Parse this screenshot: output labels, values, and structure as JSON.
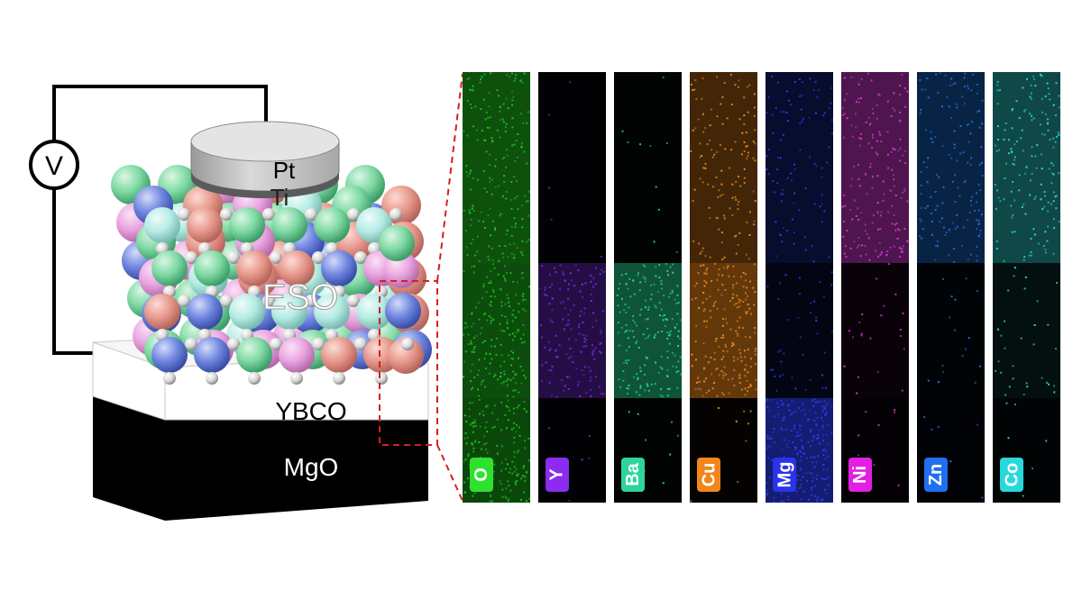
{
  "device": {
    "voltmeter_label": "V",
    "electrode_top_label": "Pt",
    "electrode_bottom_label": "Ti",
    "oxide_label": "ESO",
    "electrode_layer_label": "YBCO",
    "substrate_label": "MgO"
  },
  "eds_maps": [
    {
      "element": "O",
      "color": "#1fc41f",
      "tag_color": "#2fe12f"
    },
    {
      "element": "Y",
      "color": "#7b2de8",
      "tag_color": "#8b2cf0"
    },
    {
      "element": "Ba",
      "color": "#27d893",
      "tag_color": "#2ed59a"
    },
    {
      "element": "Cu",
      "color": "#f08a1c",
      "tag_color": "#f3861a"
    },
    {
      "element": "Mg",
      "color": "#2a3ef0",
      "tag_color": "#2b33ea"
    },
    {
      "element": "Ni",
      "color": "#d93ad9",
      "tag_color": "#e21fe2"
    },
    {
      "element": "Zn",
      "color": "#1e74e6",
      "tag_color": "#1f6ff0"
    },
    {
      "element": "Co",
      "color": "#2fdcd8",
      "tag_color": "#27d8dc"
    }
  ],
  "colors": {
    "selection_box": "#d42020",
    "substrate": "#000000",
    "ybco_layer": "#ffffff",
    "electrode": "#bdbdbd",
    "sphere_pink": "#e9a3e0",
    "sphere_salmon": "#e8988c",
    "sphere_green": "#7fd9a3",
    "sphere_blue": "#6f86e0",
    "sphere_cyan": "#b6ece4",
    "sphere_white": "#e6e6e6"
  }
}
